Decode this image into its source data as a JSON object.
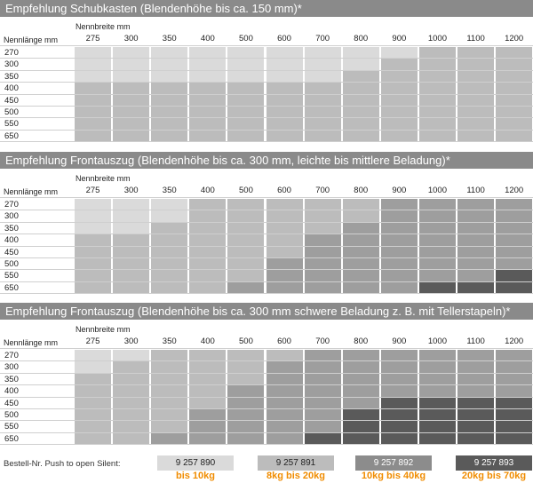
{
  "colors": {
    "title_bg": "#8a8a8a",
    "shade1": "#dadada",
    "shade2": "#bcbcbc",
    "shade3": "#9e9e9e",
    "shade4": "#7f7f7f",
    "shade5": "#5a5a5a",
    "accent_orange": "#f08c00"
  },
  "header_labels": {
    "nennlaenge": "Nennlänge mm",
    "nennbreite": "Nennbreite mm"
  },
  "widths": [
    "275",
    "300",
    "350",
    "400",
    "500",
    "600",
    "700",
    "800",
    "900",
    "1000",
    "1100",
    "1200"
  ],
  "lengths": [
    "270",
    "300",
    "350",
    "400",
    "450",
    "500",
    "550",
    "650"
  ],
  "sections": [
    {
      "title": "Empfehlung Schubkasten (Blendenhöhe bis ca. 150 mm)*",
      "grid": [
        [
          1,
          1,
          1,
          1,
          1,
          1,
          1,
          1,
          1,
          2,
          2,
          2
        ],
        [
          1,
          1,
          1,
          1,
          1,
          1,
          1,
          1,
          2,
          2,
          2,
          2
        ],
        [
          1,
          1,
          1,
          1,
          1,
          1,
          1,
          2,
          2,
          2,
          2,
          2
        ],
        [
          2,
          2,
          2,
          2,
          2,
          2,
          2,
          2,
          2,
          2,
          2,
          2
        ],
        [
          2,
          2,
          2,
          2,
          2,
          2,
          2,
          2,
          2,
          2,
          2,
          2
        ],
        [
          2,
          2,
          2,
          2,
          2,
          2,
          2,
          2,
          2,
          2,
          2,
          2
        ],
        [
          2,
          2,
          2,
          2,
          2,
          2,
          2,
          2,
          2,
          2,
          2,
          2
        ],
        [
          2,
          2,
          2,
          2,
          2,
          2,
          2,
          2,
          2,
          2,
          2,
          2
        ]
      ]
    },
    {
      "title": "Empfehlung Frontauszug (Blendenhöhe bis ca. 300 mm, leichte bis mittlere Beladung)*",
      "grid": [
        [
          1,
          1,
          1,
          2,
          2,
          2,
          2,
          2,
          3,
          3,
          3,
          3
        ],
        [
          1,
          1,
          1,
          2,
          2,
          2,
          2,
          2,
          3,
          3,
          3,
          3
        ],
        [
          1,
          1,
          2,
          2,
          2,
          2,
          2,
          3,
          3,
          3,
          3,
          3
        ],
        [
          2,
          2,
          2,
          2,
          2,
          2,
          3,
          3,
          3,
          3,
          3,
          3
        ],
        [
          2,
          2,
          2,
          2,
          2,
          2,
          3,
          3,
          3,
          3,
          3,
          3
        ],
        [
          2,
          2,
          2,
          2,
          2,
          3,
          3,
          3,
          3,
          3,
          3,
          3
        ],
        [
          2,
          2,
          2,
          2,
          2,
          3,
          3,
          3,
          3,
          3,
          3,
          4
        ],
        [
          2,
          2,
          2,
          2,
          3,
          3,
          3,
          3,
          3,
          4,
          4,
          4
        ]
      ]
    },
    {
      "title": "Empfehlung Frontauszug (Blendenhöhe bis ca. 300 mm schwere Beladung z. B. mit Tellerstapeln)*",
      "grid": [
        [
          1,
          1,
          2,
          2,
          2,
          2,
          3,
          3,
          3,
          3,
          3,
          3
        ],
        [
          1,
          2,
          2,
          2,
          2,
          3,
          3,
          3,
          3,
          3,
          3,
          3
        ],
        [
          2,
          2,
          2,
          2,
          2,
          3,
          3,
          3,
          3,
          3,
          3,
          3
        ],
        [
          2,
          2,
          2,
          2,
          3,
          3,
          3,
          3,
          3,
          3,
          3,
          3
        ],
        [
          2,
          2,
          2,
          2,
          3,
          3,
          3,
          3,
          4,
          4,
          4,
          4
        ],
        [
          2,
          2,
          2,
          3,
          3,
          3,
          3,
          4,
          4,
          4,
          4,
          4
        ],
        [
          2,
          2,
          2,
          3,
          3,
          3,
          3,
          4,
          4,
          4,
          4,
          4
        ],
        [
          2,
          2,
          3,
          3,
          3,
          3,
          4,
          4,
          4,
          4,
          4,
          4
        ]
      ]
    }
  ],
  "footer": {
    "label": "Bestell-Nr. Push to open Silent:",
    "items": [
      {
        "code": "9 257 890",
        "weight": "bis 10kg",
        "color": "#dadada"
      },
      {
        "code": "9 257 891",
        "weight": "8kg bis 20kg",
        "color": "#bcbcbc"
      },
      {
        "code": "9 257 892",
        "weight": "10kg bis 40kg",
        "color": "#8c8c8c"
      },
      {
        "code": "9 257 893",
        "weight": "20kg bis 70kg",
        "color": "#5a5a5a"
      }
    ]
  }
}
